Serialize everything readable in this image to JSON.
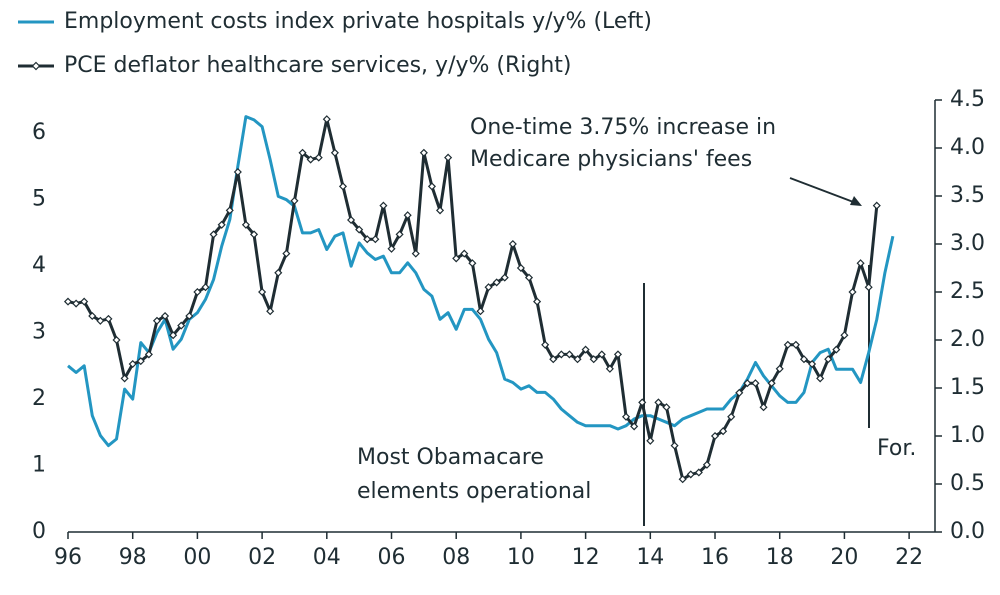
{
  "chart_data": {
    "type": "line",
    "legend": "upper left",
    "xlim": [
      1996,
      2022.8
    ],
    "xticks": [
      {
        "value": 1996,
        "label": "96"
      },
      {
        "value": 1998,
        "label": "98"
      },
      {
        "value": 2000,
        "label": "00"
      },
      {
        "value": 2002,
        "label": "02"
      },
      {
        "value": 2004,
        "label": "04"
      },
      {
        "value": 2006,
        "label": "06"
      },
      {
        "value": 2008,
        "label": "08"
      },
      {
        "value": 2010,
        "label": "10"
      },
      {
        "value": 2012,
        "label": "12"
      },
      {
        "value": 2014,
        "label": "14"
      },
      {
        "value": 2016,
        "label": "16"
      },
      {
        "value": 2018,
        "label": "18"
      },
      {
        "value": 2020,
        "label": "20"
      },
      {
        "value": 2022,
        "label": "22"
      }
    ],
    "ylim": [
      0,
      6.5
    ],
    "yticks": [
      0,
      1,
      2,
      3,
      4,
      5,
      6
    ],
    "y2lim": [
      0,
      4.5
    ],
    "y2ticks": [
      {
        "value": 0,
        "label": "0.0"
      },
      0.5,
      {
        "value": 1,
        "label": "1.0"
      },
      1.5,
      {
        "value": 2,
        "label": "2.0"
      },
      2.5,
      {
        "value": 3,
        "label": "3.0"
      },
      3.5,
      {
        "value": 4,
        "label": "4.0"
      },
      4.5
    ],
    "series": [
      {
        "name": "Employment costs index private hospitals y/y% (Left)",
        "color": "#2396c2",
        "axis": "y",
        "x": [
          1996,
          1996.25,
          1996.5,
          1996.75,
          1997,
          1997.25,
          1997.5,
          1997.75,
          1998,
          1998.25,
          1998.5,
          1998.75,
          1999,
          1999.25,
          1999.5,
          1999.75,
          2000,
          2000.25,
          2000.5,
          2000.75,
          2001,
          2001.25,
          2001.5,
          2001.75,
          2002,
          2002.25,
          2002.5,
          2002.75,
          2003,
          2003.25,
          2003.5,
          2003.75,
          2004,
          2004.25,
          2004.5,
          2004.75,
          2005,
          2005.25,
          2005.5,
          2005.75,
          2006,
          2006.25,
          2006.5,
          2006.75,
          2007,
          2007.25,
          2007.5,
          2007.75,
          2008,
          2008.25,
          2008.5,
          2008.75,
          2009,
          2009.25,
          2009.5,
          2009.75,
          2010,
          2010.25,
          2010.5,
          2010.75,
          2011,
          2011.25,
          2011.5,
          2011.75,
          2012,
          2012.25,
          2012.5,
          2012.75,
          2013,
          2013.25,
          2013.5,
          2013.75,
          2014,
          2014.25,
          2014.5,
          2014.75,
          2015,
          2015.25,
          2015.5,
          2015.75,
          2016,
          2016.25,
          2016.5,
          2016.75,
          2017,
          2017.25,
          2017.5,
          2017.75,
          2018,
          2018.25,
          2018.5,
          2018.75,
          2019,
          2019.25,
          2019.5,
          2019.75,
          2020,
          2020.25,
          2020.5,
          2020.75,
          2021,
          2021.25,
          2021.5
        ],
        "values": [
          2.5,
          2.4,
          2.5,
          1.75,
          1.45,
          1.3,
          1.4,
          2.15,
          2.0,
          2.85,
          2.7,
          3.0,
          3.2,
          2.75,
          2.9,
          3.2,
          3.3,
          3.5,
          3.8,
          4.3,
          4.7,
          5.5,
          6.25,
          6.2,
          6.1,
          5.6,
          5.05,
          5.0,
          4.9,
          4.5,
          4.5,
          4.55,
          4.25,
          4.45,
          4.5,
          4.0,
          4.35,
          4.2,
          4.1,
          4.15,
          3.9,
          3.9,
          4.05,
          3.9,
          3.65,
          3.55,
          3.2,
          3.3,
          3.05,
          3.35,
          3.35,
          3.2,
          2.9,
          2.7,
          2.3,
          2.25,
          2.15,
          2.2,
          2.1,
          2.1,
          2.0,
          1.85,
          1.75,
          1.65,
          1.6,
          1.6,
          1.6,
          1.6,
          1.55,
          1.6,
          1.7,
          1.75,
          1.75,
          1.7,
          1.65,
          1.6,
          1.7,
          1.75,
          1.8,
          1.85,
          1.85,
          1.85,
          2.0,
          2.1,
          2.3,
          2.55,
          2.35,
          2.2,
          2.05,
          1.95,
          1.95,
          2.1,
          2.55,
          2.7,
          2.75,
          2.45,
          2.45,
          2.45,
          2.25,
          2.7,
          3.2,
          3.9,
          4.45
        ]
      },
      {
        "name": "PCE deflator healthcare services, y/y% (Right)",
        "color": "#1f2d33",
        "axis": "y2",
        "x": [
          1996,
          1996.25,
          1996.5,
          1996.75,
          1997,
          1997.25,
          1997.5,
          1997.75,
          1998,
          1998.25,
          1998.5,
          1998.75,
          1999,
          1999.25,
          1999.5,
          1999.75,
          2000,
          2000.25,
          2000.5,
          2000.75,
          2001,
          2001.25,
          2001.5,
          2001.75,
          2002,
          2002.25,
          2002.5,
          2002.75,
          2003,
          2003.25,
          2003.5,
          2003.75,
          2004,
          2004.25,
          2004.5,
          2004.75,
          2005,
          2005.25,
          2005.5,
          2005.75,
          2006,
          2006.25,
          2006.5,
          2006.75,
          2007,
          2007.25,
          2007.5,
          2007.75,
          2008,
          2008.25,
          2008.5,
          2008.75,
          2009,
          2009.25,
          2009.5,
          2009.75,
          2010,
          2010.25,
          2010.5,
          2010.75,
          2011,
          2011.25,
          2011.5,
          2011.75,
          2012,
          2012.25,
          2012.5,
          2012.75,
          2013,
          2013.25,
          2013.5,
          2013.75,
          2014,
          2014.25,
          2014.5,
          2014.75,
          2015,
          2015.25,
          2015.5,
          2015.75,
          2016,
          2016.25,
          2016.5,
          2016.75,
          2017,
          2017.25,
          2017.5,
          2017.75,
          2018,
          2018.25,
          2018.5,
          2018.75,
          2019,
          2019.25,
          2019.5,
          2019.75,
          2020,
          2020.25,
          2020.5,
          2020.75,
          2021
        ],
        "values": [
          2.4,
          2.38,
          2.4,
          2.25,
          2.2,
          2.22,
          2.0,
          1.6,
          1.75,
          1.78,
          1.85,
          2.2,
          2.25,
          2.05,
          2.15,
          2.25,
          2.5,
          2.55,
          3.1,
          3.2,
          3.35,
          3.75,
          3.2,
          3.1,
          2.5,
          2.3,
          2.7,
          2.9,
          3.45,
          3.95,
          3.88,
          3.9,
          4.3,
          3.95,
          3.6,
          3.25,
          3.15,
          3.05,
          3.05,
          3.4,
          2.95,
          3.1,
          3.3,
          2.9,
          3.95,
          3.6,
          3.35,
          3.9,
          2.85,
          2.9,
          2.8,
          2.3,
          2.55,
          2.6,
          2.65,
          3.0,
          2.75,
          2.65,
          2.4,
          1.95,
          1.8,
          1.85,
          1.85,
          1.8,
          1.9,
          1.8,
          1.85,
          1.7,
          1.85,
          1.2,
          1.1,
          1.35,
          0.95,
          1.35,
          1.3,
          0.9,
          0.55,
          0.6,
          0.62,
          0.7,
          1.0,
          1.05,
          1.2,
          1.45,
          1.55,
          1.55,
          1.3,
          1.55,
          1.7,
          1.95,
          1.95,
          1.8,
          1.75,
          1.6,
          1.8,
          1.9,
          2.05,
          2.5,
          2.8,
          2.55,
          3.4
        ]
      }
    ],
    "annotations": [
      {
        "lines": [
          "One-time 3.75% increase in",
          "Medicare physicians' fees"
        ]
      },
      {
        "lines": [
          "Most Obamacare",
          "elements operational"
        ]
      },
      {
        "lines": [
          "For."
        ]
      }
    ]
  }
}
